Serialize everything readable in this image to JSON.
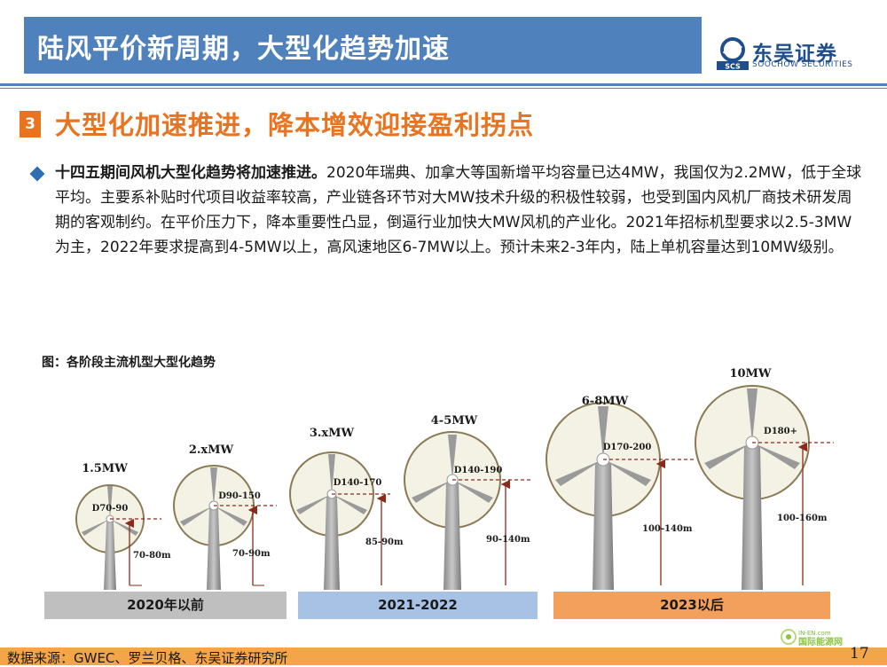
{
  "header": {
    "title": "陆风平价新周期，大型化趋势加速",
    "logo_cn": "东吴证券",
    "logo_en": "SOOCHOW SECURITIES",
    "logo_mark": "SCS",
    "brand_color": "#4f81bd"
  },
  "section": {
    "number": "3",
    "title": "大型化加速推进，降本增效迎接盈利拐点",
    "accent_color": "#e9731f"
  },
  "body": {
    "lead": "十四五期间风机大型化趋势将加速推进。",
    "text": "2020年瑞典、加拿大等国新增平均容量已达4MW，我国仅为2.2MW，低于全球平均。主要系补贴时代项目收益率较高，产业链各环节对大MW技术升级的积极性较弱，也受到国内风机厂商技术研发周期的客观制约。在平价压力下，降本重要性凸显，倒逼行业加快大MW风机的产业化。2021年招标机型要求以2.5-3MW为主，2022年要求提高到4-5MW以上，高风速地区6-7MW以上。预计未来2-3年内，陆上单机容量达到10MW级别。"
  },
  "figure": {
    "label": "图：各阶段主流机型大型化趋势",
    "turbines": [
      {
        "capacity": "1.5MW",
        "rotor": "D70-90",
        "hub": "70-80m"
      },
      {
        "capacity": "2.xMW",
        "rotor": "D90-150",
        "hub": "70-90m"
      },
      {
        "capacity": "3.xMW",
        "rotor": "D140-170",
        "hub": "85-90m"
      },
      {
        "capacity": "4-5MW",
        "rotor": "D140-190",
        "hub": "90-140m"
      },
      {
        "capacity": "6-8MW",
        "rotor": "D170-200",
        "hub": "100-140m"
      },
      {
        "capacity": "10MW",
        "rotor": "D180+",
        "hub": "100-160m"
      }
    ],
    "periods": [
      "2020年以前",
      "2021-2022",
      "2023以后"
    ]
  },
  "footer": {
    "source": "数据来源：GWEC、罗兰贝格、东吴证券研究所",
    "page": "17",
    "watermark_top": "IN-EN.com",
    "watermark_bottom": "国际能源网"
  }
}
